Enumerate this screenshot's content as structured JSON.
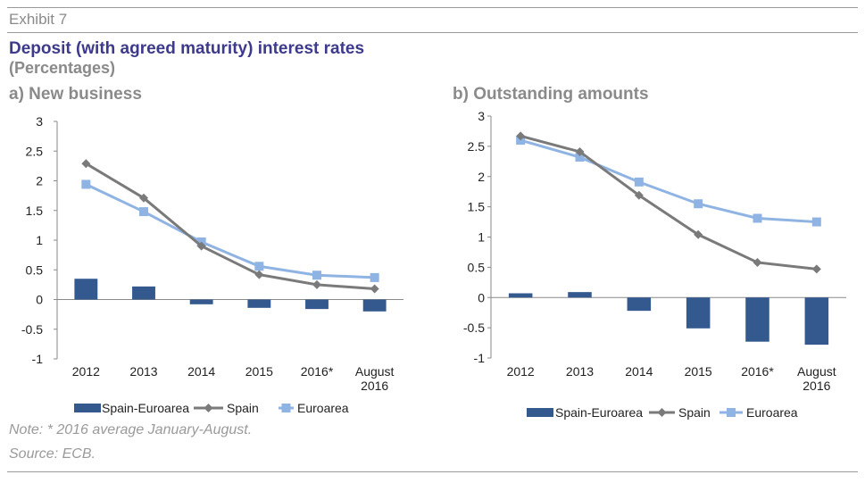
{
  "header": {
    "exhibit": "Exhibit 7",
    "title": "Deposit (with agreed maturity) interest rates",
    "subtitle": "(Percentages)"
  },
  "footer": {
    "note": "Note: * 2016 average January-August.",
    "source": "Source: ECB."
  },
  "colors": {
    "spain_euroarea": "#34598f",
    "spain": "#7a7a7a",
    "euroarea": "#8fb4e3"
  },
  "chart_data": [
    {
      "type": "bar",
      "panel_title": "a) New business",
      "categories": [
        [
          "2012"
        ],
        [
          "2013"
        ],
        [
          "2014"
        ],
        [
          "2015"
        ],
        [
          "2016*"
        ],
        [
          "August",
          "2016"
        ]
      ],
      "ylim": [
        -1,
        3
      ],
      "yticks": [
        3,
        2.5,
        2,
        1.5,
        1,
        0.5,
        0,
        -0.5,
        -1
      ],
      "series": [
        {
          "name": "Spain-Euroarea",
          "kind": "bar",
          "values": [
            0.35,
            0.22,
            -0.08,
            -0.14,
            -0.16,
            -0.2
          ]
        },
        {
          "name": "Spain",
          "kind": "line",
          "marker": "diamond",
          "values": [
            2.29,
            1.71,
            0.9,
            0.42,
            0.25,
            0.18
          ]
        },
        {
          "name": "Euroarea",
          "kind": "line",
          "marker": "square",
          "values": [
            1.94,
            1.48,
            0.97,
            0.56,
            0.41,
            0.37
          ]
        }
      ],
      "legend": "bottom"
    },
    {
      "type": "bar",
      "panel_title": "b) Outstanding amounts",
      "categories": [
        [
          "2012"
        ],
        [
          "2013"
        ],
        [
          "2014"
        ],
        [
          "2015"
        ],
        [
          "2016*"
        ],
        [
          "August",
          "2016"
        ]
      ],
      "ylim": [
        -1,
        3
      ],
      "yticks": [
        3,
        2.5,
        2,
        1.5,
        1,
        0.5,
        0,
        -0.5,
        -1
      ],
      "series": [
        {
          "name": "Spain-Euroarea",
          "kind": "bar",
          "values": [
            0.07,
            0.09,
            -0.22,
            -0.51,
            -0.73,
            -0.78
          ]
        },
        {
          "name": "Spain",
          "kind": "line",
          "marker": "diamond",
          "values": [
            2.67,
            2.41,
            1.69,
            1.04,
            0.58,
            0.47
          ]
        },
        {
          "name": "Euroarea",
          "kind": "line",
          "marker": "square",
          "values": [
            2.6,
            2.32,
            1.91,
            1.55,
            1.31,
            1.25
          ]
        }
      ],
      "legend": "bottom"
    }
  ]
}
